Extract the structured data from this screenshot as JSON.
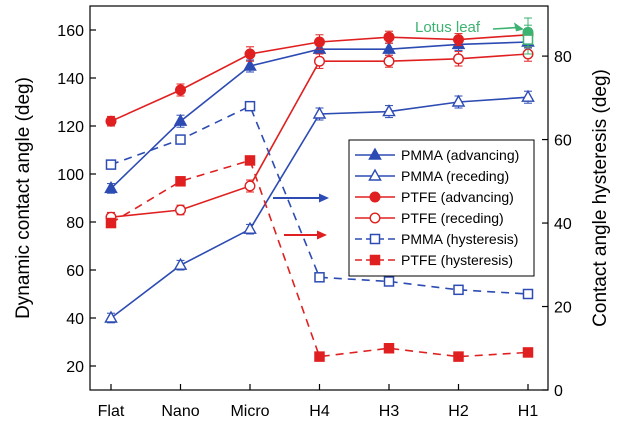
{
  "chart_data": {
    "type": "line",
    "categories": [
      "Flat",
      "Nano",
      "Micro",
      "H4",
      "H3",
      "H2",
      "H1"
    ],
    "ylabel": "Dynamic contact angle (deg)",
    "y2label": "Contact angle hysteresis (deg)",
    "ylim": [
      10,
      170
    ],
    "y2lim": [
      0,
      92
    ],
    "yticks": [
      20,
      40,
      60,
      80,
      100,
      120,
      140,
      160
    ],
    "y2ticks": [
      0,
      20,
      40,
      60,
      80
    ],
    "grid": false,
    "legend_position": "center-right",
    "annotation": {
      "text": "Lotus leaf",
      "color": "#3cb371",
      "points": [
        {
          "x": "H1",
          "y": 159,
          "error": 6
        },
        {
          "x": "H1",
          "y": 156,
          "error": 6
        }
      ]
    },
    "series": [
      {
        "name": "PMMA (advancing)",
        "axis": "left",
        "color": "#2c4bb3",
        "marker": "triangle",
        "filled": true,
        "dashed": false,
        "values": [
          94,
          122,
          145,
          152,
          152,
          154,
          155
        ],
        "errors": [
          2,
          2.5,
          2.5,
          2,
          2.5,
          2.5,
          2.5
        ]
      },
      {
        "name": "PMMA (receding)",
        "axis": "left",
        "color": "#2c4bb3",
        "marker": "triangle",
        "filled": false,
        "dashed": false,
        "values": [
          40,
          62,
          77,
          125,
          126,
          130,
          132
        ],
        "errors": [
          2,
          2,
          2,
          2.5,
          2.5,
          2.5,
          2.5
        ]
      },
      {
        "name": "PTFE (advancing)",
        "axis": "left",
        "color": "#e02020",
        "marker": "circle",
        "filled": true,
        "dashed": false,
        "values": [
          122,
          135,
          150,
          155,
          157,
          156,
          158
        ],
        "errors": [
          2,
          2.5,
          3,
          3,
          2.5,
          2.5,
          2.5
        ]
      },
      {
        "name": "PTFE (receding)",
        "axis": "left",
        "color": "#e02020",
        "marker": "circle",
        "filled": false,
        "dashed": false,
        "values": [
          82,
          85,
          95,
          147,
          147,
          148,
          150
        ],
        "errors": [
          2,
          2,
          2.5,
          3,
          2.5,
          3,
          3
        ]
      },
      {
        "name": "PMMA (hysteresis)",
        "axis": "right",
        "color": "#2c4bb3",
        "marker": "square",
        "filled": false,
        "dashed": true,
        "values": [
          54,
          60,
          68,
          27,
          26,
          24,
          23
        ],
        "errors": [
          0,
          0,
          0,
          0,
          0,
          0,
          0
        ]
      },
      {
        "name": "PTFE (hysteresis)",
        "axis": "right",
        "color": "#e02020",
        "marker": "square",
        "filled": true,
        "dashed": true,
        "values": [
          40,
          50,
          55,
          8,
          10,
          8,
          9
        ],
        "errors": [
          0,
          0,
          0,
          0,
          0,
          0,
          0
        ]
      }
    ]
  }
}
